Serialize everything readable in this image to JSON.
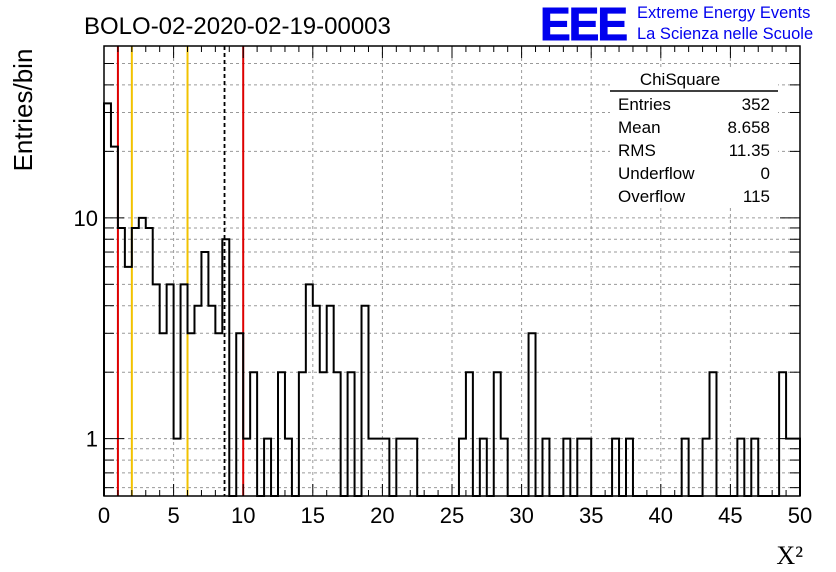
{
  "header": {
    "title": "BOLO-02-2020-02-19-00003",
    "logo_text": "EEE",
    "project_line1": "Extreme Energy Events",
    "project_line2": "La Scienza nelle Scuole",
    "accent_color": "#0000ee"
  },
  "stats_box": {
    "title": "ChiSquare",
    "rows": [
      {
        "label": "Entries",
        "value": "352"
      },
      {
        "label": "Mean",
        "value": "8.658"
      },
      {
        "label": "RMS",
        "value": "11.35"
      },
      {
        "label": "Underflow",
        "value": "0"
      },
      {
        "label": "Overflow",
        "value": "115"
      }
    ]
  },
  "chart_data": {
    "type": "histogram",
    "xlabel": "X²",
    "ylabel": "Entries/bin",
    "xlim": [
      0,
      50
    ],
    "ylim": [
      0.55,
      60
    ],
    "log_y": true,
    "grid": true,
    "bin_width": 0.5,
    "x_ticks": [
      "0",
      "5",
      "10",
      "15",
      "20",
      "25",
      "30",
      "35",
      "40",
      "45",
      "50"
    ],
    "y_ticks": [
      {
        "value": 1,
        "label": "1"
      },
      {
        "value": 10,
        "label": "10"
      }
    ],
    "counts": [
      33,
      21,
      9,
      6,
      9,
      10,
      9,
      5,
      3,
      5,
      1,
      5,
      3,
      4,
      7,
      4,
      3,
      8,
      0,
      3,
      1,
      2,
      0,
      1,
      0,
      2,
      1,
      0,
      2,
      5,
      4,
      2,
      4,
      2,
      0,
      2,
      0,
      4,
      1,
      1,
      1,
      0,
      1,
      1,
      1,
      0,
      0,
      0,
      0,
      0,
      0,
      1,
      2,
      0,
      1,
      0,
      2,
      1,
      0,
      0,
      0,
      3,
      0,
      1,
      0,
      0,
      1,
      0,
      1,
      1,
      0,
      0,
      0,
      1,
      0,
      1,
      0,
      0,
      0,
      0,
      0,
      0,
      0,
      1,
      0,
      0,
      1,
      2,
      0,
      0,
      0,
      1,
      0,
      1,
      0,
      0,
      0,
      2,
      1,
      1
    ],
    "reference_lines": [
      {
        "x": 1,
        "color": "#dd0000",
        "style": "solid"
      },
      {
        "x": 2,
        "color": "#f2c200",
        "style": "solid"
      },
      {
        "x": 6,
        "color": "#f2c200",
        "style": "solid"
      },
      {
        "x": 8.658,
        "color": "#000000",
        "style": "dashed"
      },
      {
        "x": 10,
        "color": "#dd0000",
        "style": "solid"
      }
    ]
  }
}
